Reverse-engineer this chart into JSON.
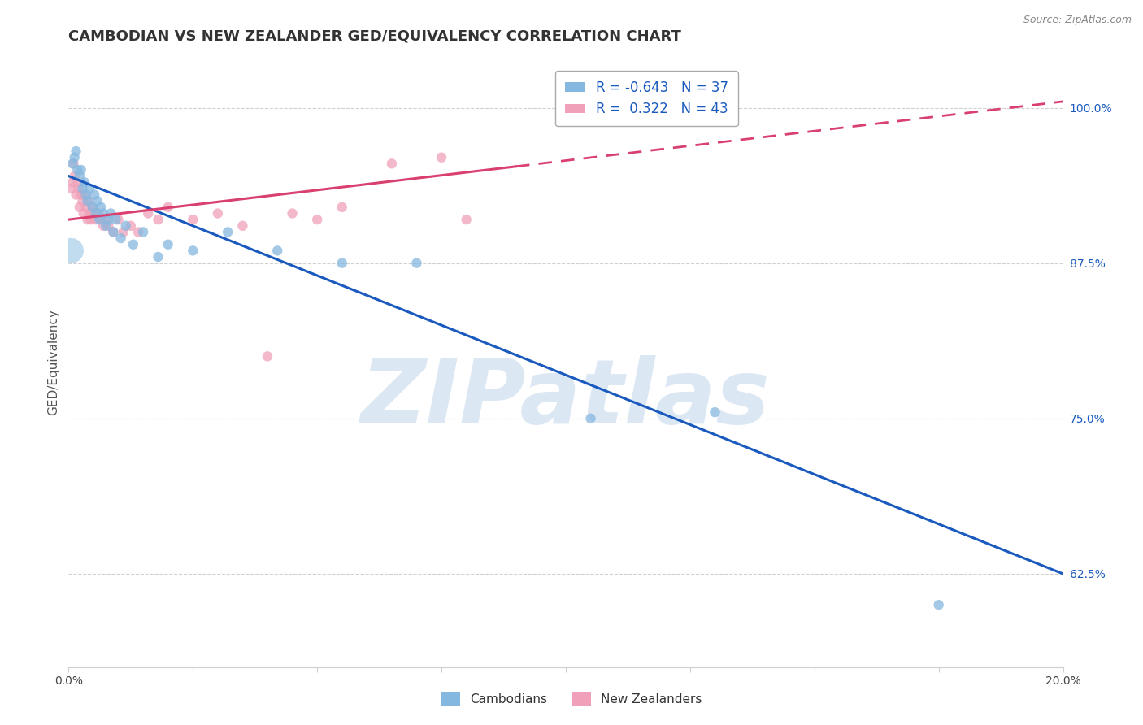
{
  "title": "CAMBODIAN VS NEW ZEALANDER GED/EQUIVALENCY CORRELATION CHART",
  "source": "Source: ZipAtlas.com",
  "ylabel": "GED/Equivalency",
  "yticks": [
    62.5,
    75.0,
    87.5,
    100.0
  ],
  "ytick_labels": [
    "62.5%",
    "75.0%",
    "87.5%",
    "100.0%"
  ],
  "xmin": 0.0,
  "xmax": 20.0,
  "ymin": 55.0,
  "ymax": 104.0,
  "blue_R": -0.643,
  "blue_N": 37,
  "pink_R": 0.322,
  "pink_N": 43,
  "blue_color": "#85b8e0",
  "pink_color": "#f0a0b8",
  "blue_line_color": "#1a5abe",
  "pink_line_color": "#d94070",
  "blue_scatter_x": [
    0.08,
    0.12,
    0.15,
    0.18,
    0.22,
    0.25,
    0.28,
    0.32,
    0.35,
    0.38,
    0.42,
    0.48,
    0.52,
    0.55,
    0.58,
    0.62,
    0.65,
    0.7,
    0.75,
    0.8,
    0.85,
    0.9,
    0.95,
    1.05,
    1.15,
    1.3,
    1.5,
    1.8,
    2.0,
    2.5,
    3.2,
    4.2,
    5.5,
    7.0,
    10.5,
    13.0,
    17.5
  ],
  "blue_scatter_y": [
    95.5,
    96.0,
    96.5,
    95.0,
    94.5,
    95.0,
    93.5,
    94.0,
    93.0,
    92.5,
    93.5,
    92.0,
    93.0,
    91.5,
    92.5,
    91.0,
    92.0,
    91.5,
    90.5,
    91.0,
    91.5,
    90.0,
    91.0,
    89.5,
    90.5,
    89.0,
    90.0,
    88.0,
    89.0,
    88.5,
    90.0,
    88.5,
    87.5,
    87.5,
    75.0,
    75.5,
    60.0
  ],
  "blue_scatter_size": [
    80,
    80,
    80,
    80,
    80,
    80,
    80,
    80,
    80,
    80,
    80,
    80,
    80,
    80,
    80,
    80,
    80,
    80,
    80,
    80,
    80,
    80,
    80,
    80,
    80,
    80,
    80,
    80,
    80,
    80,
    80,
    80,
    80,
    80,
    80,
    80,
    80
  ],
  "blue_big_x": 0.05,
  "blue_big_y": 88.5,
  "blue_big_size": 500,
  "pink_scatter_x": [
    0.05,
    0.08,
    0.1,
    0.12,
    0.15,
    0.18,
    0.2,
    0.22,
    0.25,
    0.28,
    0.3,
    0.32,
    0.35,
    0.38,
    0.4,
    0.42,
    0.45,
    0.48,
    0.5,
    0.55,
    0.6,
    0.65,
    0.7,
    0.75,
    0.8,
    0.9,
    1.0,
    1.1,
    1.25,
    1.4,
    1.6,
    1.8,
    2.0,
    2.5,
    3.0,
    3.5,
    4.5,
    5.0,
    5.5,
    6.5,
    7.5,
    4.0,
    8.0
  ],
  "pink_scatter_y": [
    93.5,
    94.0,
    95.5,
    94.5,
    93.0,
    94.0,
    93.5,
    92.0,
    93.0,
    92.5,
    91.5,
    93.0,
    92.0,
    91.0,
    92.5,
    91.5,
    91.0,
    92.0,
    91.5,
    91.0,
    91.5,
    91.0,
    90.5,
    91.0,
    90.5,
    90.0,
    91.0,
    90.0,
    90.5,
    90.0,
    91.5,
    91.0,
    92.0,
    91.0,
    91.5,
    90.5,
    91.5,
    91.0,
    92.0,
    95.5,
    96.0,
    80.0,
    91.0
  ],
  "pink_scatter_size": [
    80,
    80,
    80,
    80,
    80,
    80,
    80,
    80,
    80,
    80,
    80,
    80,
    80,
    80,
    80,
    80,
    80,
    80,
    80,
    80,
    80,
    80,
    80,
    80,
    80,
    80,
    80,
    80,
    80,
    80,
    80,
    80,
    80,
    80,
    80,
    80,
    80,
    80,
    80,
    80,
    80,
    80,
    80
  ],
  "blue_line_x0": 0.0,
  "blue_line_x1": 20.0,
  "blue_line_y0": 94.5,
  "blue_line_y1": 62.5,
  "pink_line_x0": 0.0,
  "pink_line_x1": 20.0,
  "pink_line_y0": 91.0,
  "pink_line_y1": 100.5,
  "pink_solid_end_x": 9.0,
  "watermark_text": "ZIPatlas",
  "watermark_color": "#c5d8ee",
  "watermark_alpha": 0.6,
  "background_color": "#ffffff",
  "grid_color": "#d0d0d0",
  "title_fontsize": 13,
  "axis_label_fontsize": 11,
  "tick_fontsize": 10,
  "legend_fontsize": 12,
  "legend_blue_label": "Cambodians",
  "legend_pink_label": "New Zealanders",
  "ytick_color": "#1a5abe"
}
